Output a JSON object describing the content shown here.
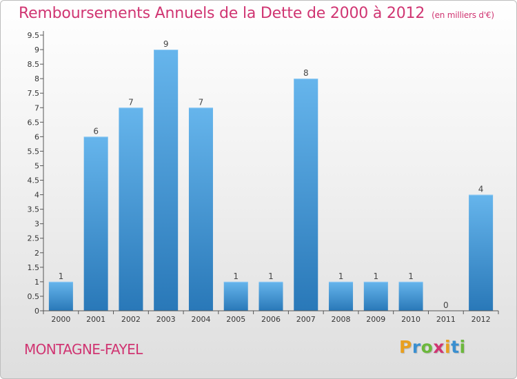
{
  "title": "Remboursements Annuels de la Dette de 2000 à 2012",
  "unit_note": "(en milliers d'€)",
  "commune": "MONTAGNE-FAYEL",
  "logo": {
    "letters": [
      "P",
      "r",
      "o",
      "x",
      "i",
      "t",
      "i"
    ],
    "colors": [
      "#e8a020",
      "#3a8fd0",
      "#6cb83c",
      "#d03572",
      "#e8a020",
      "#3a8fd0",
      "#6cb83c"
    ]
  },
  "colors": {
    "bar_top": "#66b5ec",
    "bar_bottom": "#2978b8",
    "title": "#d03572"
  },
  "chart_data": {
    "type": "bar",
    "categories": [
      "2000",
      "2001",
      "2002",
      "2003",
      "2004",
      "2005",
      "2006",
      "2007",
      "2008",
      "2009",
      "2010",
      "2011",
      "2012"
    ],
    "values": [
      1,
      6,
      7,
      9,
      7,
      1,
      1,
      8,
      1,
      1,
      1,
      0,
      4
    ],
    "value_labels": [
      "1",
      "6",
      "7",
      "9",
      "7",
      "1",
      "1",
      "8",
      "1",
      "1",
      "1",
      "0",
      "4"
    ],
    "yticks": [
      "0",
      "0.5",
      "1",
      "1.5",
      "2",
      "2.5",
      "3",
      "3.5",
      "4",
      "4.5",
      "5",
      "5.5",
      "6",
      "6.5",
      "7",
      "7.5",
      "8",
      "8.5",
      "9",
      "9.5"
    ],
    "ylim": [
      0,
      9.5
    ],
    "grid": false,
    "title": "Remboursements Annuels de la Dette de 2000 à 2012",
    "xlabel": "",
    "ylabel": ""
  }
}
